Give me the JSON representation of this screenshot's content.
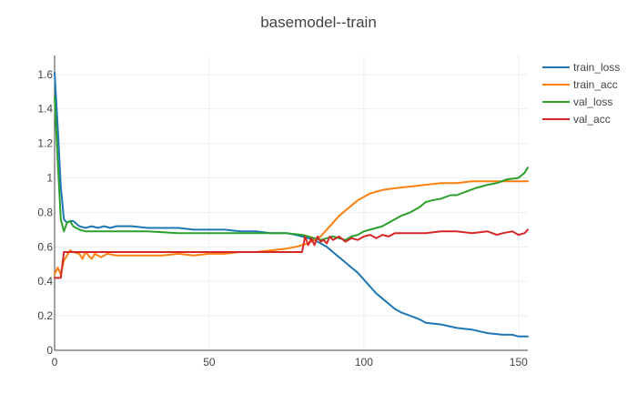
{
  "chart_data": {
    "type": "line",
    "title": "basemodel--train",
    "xlabel": "",
    "ylabel": "",
    "xlim": [
      0,
      153
    ],
    "ylim": [
      0,
      1.71
    ],
    "x_ticks": [
      0,
      50,
      100,
      150
    ],
    "x_tick_labels": [
      "0",
      "50",
      "100",
      "150"
    ],
    "y_ticks": [
      0,
      0.2,
      0.4,
      0.6,
      0.8,
      1,
      1.2,
      1.4,
      1.6
    ],
    "y_tick_labels": [
      "0",
      "0.2",
      "0.4",
      "0.6",
      "0.8",
      "1",
      "1.2",
      "1.4",
      "1.6"
    ],
    "grid": true,
    "legend_position": "top-right",
    "series": [
      {
        "name": "train_loss",
        "color": "#1f77b4",
        "x": [
          0,
          1,
          2,
          3,
          4,
          5,
          6,
          8,
          10,
          12,
          14,
          16,
          18,
          20,
          25,
          30,
          35,
          40,
          45,
          50,
          55,
          60,
          65,
          70,
          75,
          78,
          80,
          82,
          84,
          86,
          88,
          90,
          92,
          94,
          96,
          98,
          100,
          102,
          104,
          106,
          108,
          110,
          112,
          115,
          118,
          120,
          125,
          130,
          135,
          140,
          145,
          148,
          150,
          152,
          153
        ],
        "y": [
          1.61,
          1.3,
          0.95,
          0.76,
          0.74,
          0.75,
          0.75,
          0.72,
          0.71,
          0.72,
          0.71,
          0.72,
          0.71,
          0.72,
          0.72,
          0.71,
          0.71,
          0.71,
          0.7,
          0.7,
          0.7,
          0.69,
          0.69,
          0.68,
          0.68,
          0.67,
          0.66,
          0.65,
          0.64,
          0.62,
          0.6,
          0.57,
          0.54,
          0.51,
          0.48,
          0.45,
          0.41,
          0.37,
          0.33,
          0.3,
          0.27,
          0.24,
          0.22,
          0.2,
          0.18,
          0.16,
          0.15,
          0.13,
          0.12,
          0.1,
          0.09,
          0.09,
          0.08,
          0.08,
          0.08
        ]
      },
      {
        "name": "train_acc",
        "color": "#ff7f0e",
        "x": [
          0,
          1,
          2,
          3,
          4,
          5,
          6,
          8,
          9,
          10,
          12,
          13,
          15,
          17,
          20,
          25,
          30,
          35,
          40,
          45,
          50,
          55,
          60,
          65,
          70,
          75,
          78,
          80,
          82,
          84,
          86,
          88,
          90,
          92,
          94,
          96,
          98,
          100,
          102,
          104,
          106,
          110,
          115,
          120,
          125,
          130,
          135,
          140,
          145,
          150,
          152,
          153
        ],
        "y": [
          0.44,
          0.48,
          0.44,
          0.52,
          0.55,
          0.58,
          0.57,
          0.56,
          0.53,
          0.57,
          0.53,
          0.56,
          0.54,
          0.56,
          0.55,
          0.55,
          0.55,
          0.55,
          0.56,
          0.55,
          0.56,
          0.56,
          0.57,
          0.57,
          0.58,
          0.59,
          0.6,
          0.61,
          0.62,
          0.64,
          0.66,
          0.7,
          0.74,
          0.78,
          0.81,
          0.84,
          0.87,
          0.89,
          0.91,
          0.92,
          0.93,
          0.94,
          0.95,
          0.96,
          0.97,
          0.97,
          0.98,
          0.98,
          0.98,
          0.98,
          0.98,
          0.98
        ]
      },
      {
        "name": "val_loss",
        "color": "#2ca02c",
        "x": [
          0,
          1,
          2,
          3,
          4,
          5,
          6,
          8,
          10,
          15,
          20,
          30,
          40,
          50,
          60,
          70,
          75,
          80,
          82,
          84,
          86,
          88,
          90,
          92,
          94,
          96,
          98,
          100,
          102,
          104,
          106,
          108,
          110,
          112,
          115,
          118,
          120,
          122,
          125,
          128,
          130,
          133,
          136,
          140,
          143,
          146,
          150,
          152,
          153
        ],
        "y": [
          1.47,
          1.1,
          0.76,
          0.69,
          0.74,
          0.75,
          0.72,
          0.7,
          0.69,
          0.69,
          0.69,
          0.69,
          0.68,
          0.68,
          0.68,
          0.68,
          0.68,
          0.67,
          0.66,
          0.65,
          0.64,
          0.65,
          0.66,
          0.65,
          0.64,
          0.66,
          0.67,
          0.69,
          0.7,
          0.71,
          0.72,
          0.74,
          0.76,
          0.78,
          0.8,
          0.83,
          0.86,
          0.87,
          0.88,
          0.9,
          0.9,
          0.92,
          0.94,
          0.96,
          0.97,
          0.99,
          1.0,
          1.03,
          1.06
        ]
      },
      {
        "name": "val_acc",
        "color": "#d62728",
        "x": [
          0,
          1,
          2,
          3,
          4,
          5,
          6,
          10,
          20,
          30,
          40,
          50,
          60,
          70,
          75,
          78,
          80,
          81,
          82,
          83,
          84,
          85,
          86,
          87,
          88,
          89,
          90,
          92,
          94,
          96,
          98,
          100,
          102,
          104,
          106,
          108,
          110,
          115,
          120,
          125,
          130,
          135,
          140,
          143,
          145,
          148,
          150,
          152,
          153
        ],
        "y": [
          0.42,
          0.42,
          0.42,
          0.57,
          0.57,
          0.57,
          0.57,
          0.57,
          0.57,
          0.57,
          0.57,
          0.57,
          0.57,
          0.57,
          0.57,
          0.57,
          0.57,
          0.66,
          0.61,
          0.65,
          0.61,
          0.66,
          0.63,
          0.64,
          0.62,
          0.66,
          0.64,
          0.66,
          0.63,
          0.65,
          0.64,
          0.66,
          0.67,
          0.65,
          0.67,
          0.66,
          0.68,
          0.68,
          0.68,
          0.69,
          0.69,
          0.68,
          0.69,
          0.67,
          0.68,
          0.69,
          0.67,
          0.68,
          0.7
        ]
      }
    ]
  }
}
